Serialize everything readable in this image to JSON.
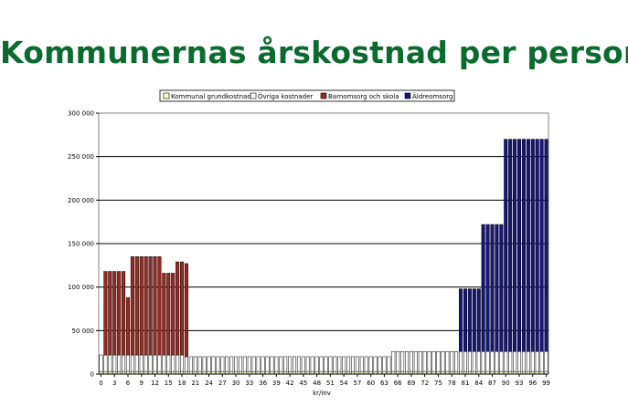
{
  "chart_data": {
    "type": "bar",
    "stacked": true,
    "title": "Kommunernas årskostnad per person",
    "xlabel": "kr/inv",
    "ylabel": "",
    "ylim": [
      0,
      300000
    ],
    "yticks": [
      0,
      50000,
      100000,
      150000,
      200000,
      250000,
      300000
    ],
    "ytick_labels": [
      "0",
      "50 000",
      "100 000",
      "150 000",
      "200 000",
      "250 000",
      "300 000"
    ],
    "xtick_labels": [
      "0",
      "3",
      "6",
      "9",
      "12",
      "15",
      "18",
      "21",
      "24",
      "27",
      "30",
      "33",
      "36",
      "39",
      "42",
      "45",
      "48",
      "51",
      "54",
      "57",
      "60",
      "63",
      "66",
      "69",
      "72",
      "75",
      "78",
      "81",
      "84",
      "87",
      "90",
      "93",
      "96",
      "99"
    ],
    "x": [
      0,
      1,
      2,
      3,
      4,
      5,
      6,
      7,
      8,
      9,
      10,
      11,
      12,
      13,
      14,
      15,
      16,
      17,
      18,
      19,
      20,
      21,
      22,
      23,
      24,
      25,
      26,
      27,
      28,
      29,
      30,
      31,
      32,
      33,
      34,
      35,
      36,
      37,
      38,
      39,
      40,
      41,
      42,
      43,
      44,
      45,
      46,
      47,
      48,
      49,
      50,
      51,
      52,
      53,
      54,
      55,
      56,
      57,
      58,
      59,
      60,
      61,
      62,
      63,
      64,
      65,
      66,
      67,
      68,
      69,
      70,
      71,
      72,
      73,
      74,
      75,
      76,
      77,
      78,
      79,
      80,
      81,
      82,
      83,
      84,
      85,
      86,
      87,
      88,
      89,
      90,
      91,
      92,
      93,
      94,
      95,
      96,
      97,
      98,
      99
    ],
    "grid": true,
    "legend_position": "top",
    "series": [
      {
        "name": "Kommunal grundkostnad",
        "color": "#ffffcc",
        "values": [
          3000,
          3000,
          3000,
          3000,
          3000,
          3000,
          3000,
          3000,
          3000,
          3000,
          3000,
          3000,
          3000,
          3000,
          3000,
          3000,
          3000,
          3000,
          3000,
          3000,
          3000,
          3000,
          3000,
          3000,
          3000,
          3000,
          3000,
          3000,
          3000,
          3000,
          3000,
          3000,
          3000,
          3000,
          3000,
          3000,
          3000,
          3000,
          3000,
          3000,
          3000,
          3000,
          3000,
          3000,
          3000,
          3000,
          3000,
          3000,
          3000,
          3000,
          3000,
          3000,
          3000,
          3000,
          3000,
          3000,
          3000,
          3000,
          3000,
          3000,
          3000,
          3000,
          3000,
          3000,
          3000,
          3000,
          3000,
          3000,
          3000,
          3000,
          3000,
          3000,
          3000,
          3000,
          3000,
          3000,
          3000,
          3000,
          3000,
          3000,
          3000,
          3000,
          3000,
          3000,
          3000,
          3000,
          3000,
          3000,
          3000,
          3000,
          3000,
          3000,
          3000,
          3000,
          3000,
          3000,
          3000,
          3000,
          3000,
          3000
        ]
      },
      {
        "name": "Övriga kostnader",
        "color": "#ffffff",
        "values": [
          19000,
          19000,
          19000,
          19000,
          19000,
          19000,
          19000,
          19000,
          19000,
          19000,
          19000,
          19000,
          19000,
          19000,
          19000,
          19000,
          19000,
          19000,
          19000,
          17000,
          17000,
          17000,
          17000,
          17000,
          17000,
          17000,
          17000,
          17000,
          17000,
          17000,
          17000,
          17000,
          17000,
          17000,
          17000,
          17000,
          17000,
          17000,
          17000,
          17000,
          17000,
          17000,
          17000,
          17000,
          17000,
          17000,
          17000,
          17000,
          17000,
          17000,
          17000,
          17000,
          17000,
          17000,
          17000,
          17000,
          17000,
          17000,
          17000,
          17000,
          17000,
          17000,
          17000,
          17000,
          17000,
          23000,
          23000,
          23000,
          23000,
          23000,
          23000,
          23000,
          23000,
          23000,
          23000,
          23000,
          23000,
          23000,
          23000,
          23000,
          23000,
          23000,
          23000,
          23000,
          23000,
          23000,
          23000,
          23000,
          23000,
          23000,
          23000,
          23000,
          23000,
          23000,
          23000,
          23000,
          23000,
          23000,
          23000,
          23000
        ]
      },
      {
        "name": "Barnomsorg och skola",
        "color": "#9b2b22",
        "values": [
          0,
          96000,
          96000,
          96000,
          96000,
          96000,
          66000,
          113000,
          113000,
          113000,
          113000,
          113000,
          113000,
          113000,
          94000,
          94000,
          94000,
          107000,
          107000,
          107000,
          0,
          0,
          0,
          0,
          0,
          0,
          0,
          0,
          0,
          0,
          0,
          0,
          0,
          0,
          0,
          0,
          0,
          0,
          0,
          0,
          0,
          0,
          0,
          0,
          0,
          0,
          0,
          0,
          0,
          0,
          0,
          0,
          0,
          0,
          0,
          0,
          0,
          0,
          0,
          0,
          0,
          0,
          0,
          0,
          0,
          0,
          0,
          0,
          0,
          0,
          0,
          0,
          0,
          0,
          0,
          0,
          0,
          0,
          0,
          0,
          0,
          0,
          0,
          0,
          0,
          0,
          0,
          0,
          0,
          0,
          0,
          0,
          0,
          0,
          0,
          0,
          0,
          0,
          0,
          0
        ]
      },
      {
        "name": "Äldreomsorg",
        "color": "#16167a",
        "values": [
          0,
          0,
          0,
          0,
          0,
          0,
          0,
          0,
          0,
          0,
          0,
          0,
          0,
          0,
          0,
          0,
          0,
          0,
          0,
          0,
          0,
          0,
          0,
          0,
          0,
          0,
          0,
          0,
          0,
          0,
          0,
          0,
          0,
          0,
          0,
          0,
          0,
          0,
          0,
          0,
          0,
          0,
          0,
          0,
          0,
          0,
          0,
          0,
          0,
          0,
          0,
          0,
          0,
          0,
          0,
          0,
          0,
          0,
          0,
          0,
          0,
          0,
          0,
          0,
          0,
          0,
          0,
          0,
          0,
          0,
          0,
          0,
          0,
          0,
          0,
          0,
          0,
          0,
          0,
          0,
          72000,
          72000,
          72000,
          72000,
          72000,
          146000,
          146000,
          146000,
          146000,
          146000,
          244000,
          244000,
          244000,
          244000,
          244000,
          244000,
          244000,
          244000,
          244000,
          244000
        ]
      }
    ]
  }
}
